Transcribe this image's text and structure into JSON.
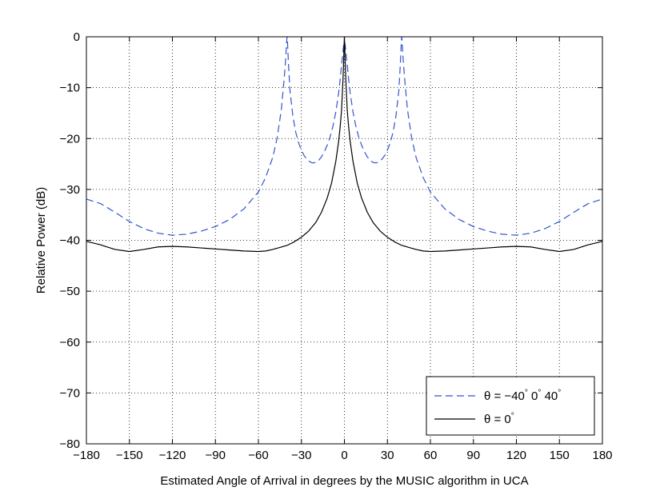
{
  "chart_data": {
    "type": "line",
    "title": "",
    "xlabel": "Estimated Angle of Arrival in degrees by the MUSIC algorithm in UCA",
    "ylabel": "Relative Power (dB)",
    "xlim": [
      -180,
      180
    ],
    "ylim": [
      -80,
      0
    ],
    "xticks": [
      -180,
      -150,
      -120,
      -90,
      -60,
      -30,
      0,
      30,
      60,
      90,
      120,
      150,
      180
    ],
    "yticks": [
      0,
      -10,
      -20,
      -30,
      -40,
      -50,
      -60,
      -70,
      -80
    ],
    "grid": true,
    "legend_position": "bottom-right",
    "series": [
      {
        "name": "θ = −40° 0° 40°",
        "legend_parts": {
          "lhs": "θ = −40",
          "deg": "°",
          "mid": " 0",
          "end": " 40"
        },
        "color": "#3355cc",
        "dash": "dashed",
        "x": [
          -180,
          -170,
          -160,
          -150,
          -140,
          -130,
          -120,
          -110,
          -100,
          -90,
          -80,
          -70,
          -60,
          -55,
          -50,
          -47,
          -44,
          -42,
          -41,
          -40.3,
          -40,
          -39.7,
          -39,
          -38,
          -36,
          -34,
          -32,
          -30,
          -28,
          -26,
          -24,
          -22,
          -20,
          -18,
          -16,
          -14,
          -12,
          -10,
          -8,
          -6,
          -4,
          -3,
          -2,
          -1,
          -0.5,
          0,
          0.5,
          1,
          2,
          3,
          4,
          6,
          8,
          10,
          12,
          14,
          16,
          18,
          20,
          22,
          24,
          26,
          28,
          30,
          32,
          34,
          36,
          38,
          39,
          39.7,
          40,
          40.3,
          41,
          42,
          44,
          47,
          50,
          55,
          60,
          70,
          80,
          90,
          100,
          110,
          120,
          130,
          140,
          150,
          160,
          170,
          180
        ],
        "y": [
          -31.9,
          -32.8,
          -34.5,
          -36.3,
          -37.7,
          -38.6,
          -39.0,
          -38.8,
          -38.2,
          -37.3,
          -35.9,
          -33.8,
          -30.5,
          -27.7,
          -23.7,
          -20.0,
          -14.3,
          -8.2,
          -4.5,
          -1.0,
          0,
          -1.0,
          -5.5,
          -10.5,
          -15.5,
          -18.7,
          -20.8,
          -22.3,
          -23.4,
          -24.1,
          -24.6,
          -24.8,
          -24.7,
          -24.3,
          -23.6,
          -22.6,
          -21.3,
          -19.7,
          -17.6,
          -14.8,
          -11.0,
          -8.5,
          -5.5,
          -3.0,
          -1.5,
          -1.0,
          -1.5,
          -3.0,
          -5.5,
          -8.5,
          -11.0,
          -14.8,
          -17.6,
          -19.7,
          -21.3,
          -22.6,
          -23.6,
          -24.3,
          -24.7,
          -24.8,
          -24.6,
          -24.1,
          -23.4,
          -22.3,
          -20.8,
          -18.7,
          -15.5,
          -10.5,
          -5.5,
          -1.0,
          0,
          -1.0,
          -4.5,
          -8.2,
          -14.3,
          -20.0,
          -23.7,
          -27.7,
          -30.5,
          -33.8,
          -35.9,
          -37.3,
          -38.2,
          -38.8,
          -39.0,
          -38.6,
          -37.7,
          -36.3,
          -34.5,
          -32.8,
          -31.9
        ]
      },
      {
        "name": "θ = 0°",
        "legend_parts": {
          "lhs": "θ = 0",
          "deg": "°"
        },
        "color": "#000000",
        "dash": "solid",
        "x": [
          -180,
          -170,
          -160,
          -150,
          -140,
          -130,
          -120,
          -110,
          -100,
          -90,
          -80,
          -70,
          -60,
          -55,
          -50,
          -45,
          -40,
          -35,
          -30,
          -25,
          -20,
          -16,
          -12,
          -9,
          -6,
          -4,
          -3,
          -2,
          -1.5,
          -1,
          -0.5,
          -0.2,
          0,
          0.2,
          0.5,
          1,
          1.5,
          2,
          3,
          4,
          6,
          9,
          12,
          16,
          20,
          25,
          30,
          35,
          40,
          45,
          50,
          55,
          60,
          70,
          80,
          90,
          100,
          110,
          120,
          130,
          140,
          150,
          160,
          170,
          180
        ],
        "y": [
          -40.2,
          -40.9,
          -41.8,
          -42.2,
          -41.8,
          -41.3,
          -41.2,
          -41.3,
          -41.5,
          -41.7,
          -41.9,
          -42.1,
          -42.2,
          -42.1,
          -41.8,
          -41.4,
          -41.0,
          -40.3,
          -39.4,
          -38.2,
          -36.5,
          -34.5,
          -31.7,
          -28.8,
          -24.5,
          -20.5,
          -17.8,
          -14.5,
          -11.5,
          -8.5,
          -4.5,
          -1.5,
          0,
          -1.5,
          -4.5,
          -8.5,
          -11.5,
          -14.5,
          -17.8,
          -20.5,
          -24.5,
          -28.8,
          -31.7,
          -34.5,
          -36.5,
          -38.2,
          -39.4,
          -40.3,
          -41.0,
          -41.4,
          -41.8,
          -42.1,
          -42.2,
          -42.1,
          -41.9,
          -41.7,
          -41.5,
          -41.3,
          -41.2,
          -41.3,
          -41.8,
          -42.2,
          -41.8,
          -40.9,
          -40.2
        ]
      }
    ]
  }
}
